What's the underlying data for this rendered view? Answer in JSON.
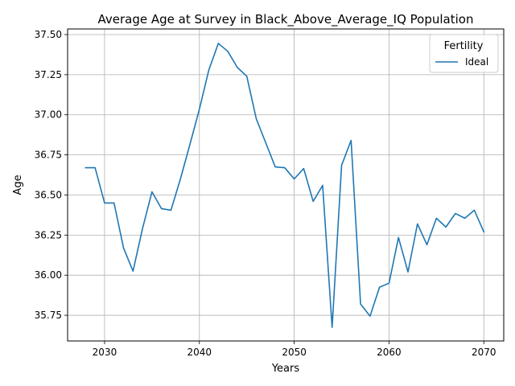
{
  "chart_data": {
    "type": "line",
    "title": "Average Age at Survey in Black_Above_Average_IQ Population",
    "xlabel": "Years",
    "ylabel": "Age",
    "xlim": [
      2026.1,
      2072.1
    ],
    "ylim": [
      35.59,
      37.535
    ],
    "xticks": [
      2030,
      2040,
      2050,
      2060,
      2070
    ],
    "yticks": [
      35.75,
      36.0,
      36.25,
      36.5,
      36.75,
      37.0,
      37.25,
      37.5
    ],
    "ytick_labels": [
      "35.75",
      "36.00",
      "36.25",
      "36.50",
      "36.75",
      "37.00",
      "37.25",
      "37.50"
    ],
    "grid": true,
    "legend": {
      "title": "Fertility",
      "placement": "top-right"
    },
    "series": [
      {
        "name": "Ideal",
        "color": "#1f77b4",
        "x": [
          2028,
          2029,
          2030,
          2031,
          2032,
          2033,
          2034,
          2035,
          2036,
          2037,
          2038,
          2039,
          2040,
          2041,
          2042,
          2043,
          2044,
          2045,
          2046,
          2047,
          2048,
          2049,
          2050,
          2051,
          2052,
          2053,
          2054,
          2055,
          2056,
          2057,
          2058,
          2059,
          2060,
          2061,
          2062,
          2063,
          2064,
          2065,
          2066,
          2067,
          2068,
          2069,
          2070
        ],
        "y": [
          36.67,
          36.67,
          36.45,
          36.45,
          36.17,
          36.025,
          36.29,
          36.52,
          36.415,
          36.405,
          36.6,
          36.815,
          37.035,
          37.28,
          37.445,
          37.395,
          37.295,
          37.24,
          36.975,
          36.825,
          36.675,
          36.67,
          36.6,
          36.665,
          36.46,
          36.56,
          35.675,
          36.685,
          36.84,
          35.82,
          35.745,
          35.925,
          35.95,
          36.235,
          36.02,
          36.32,
          36.19,
          36.355,
          36.3,
          36.385,
          36.355,
          36.405,
          36.27
        ]
      }
    ]
  }
}
